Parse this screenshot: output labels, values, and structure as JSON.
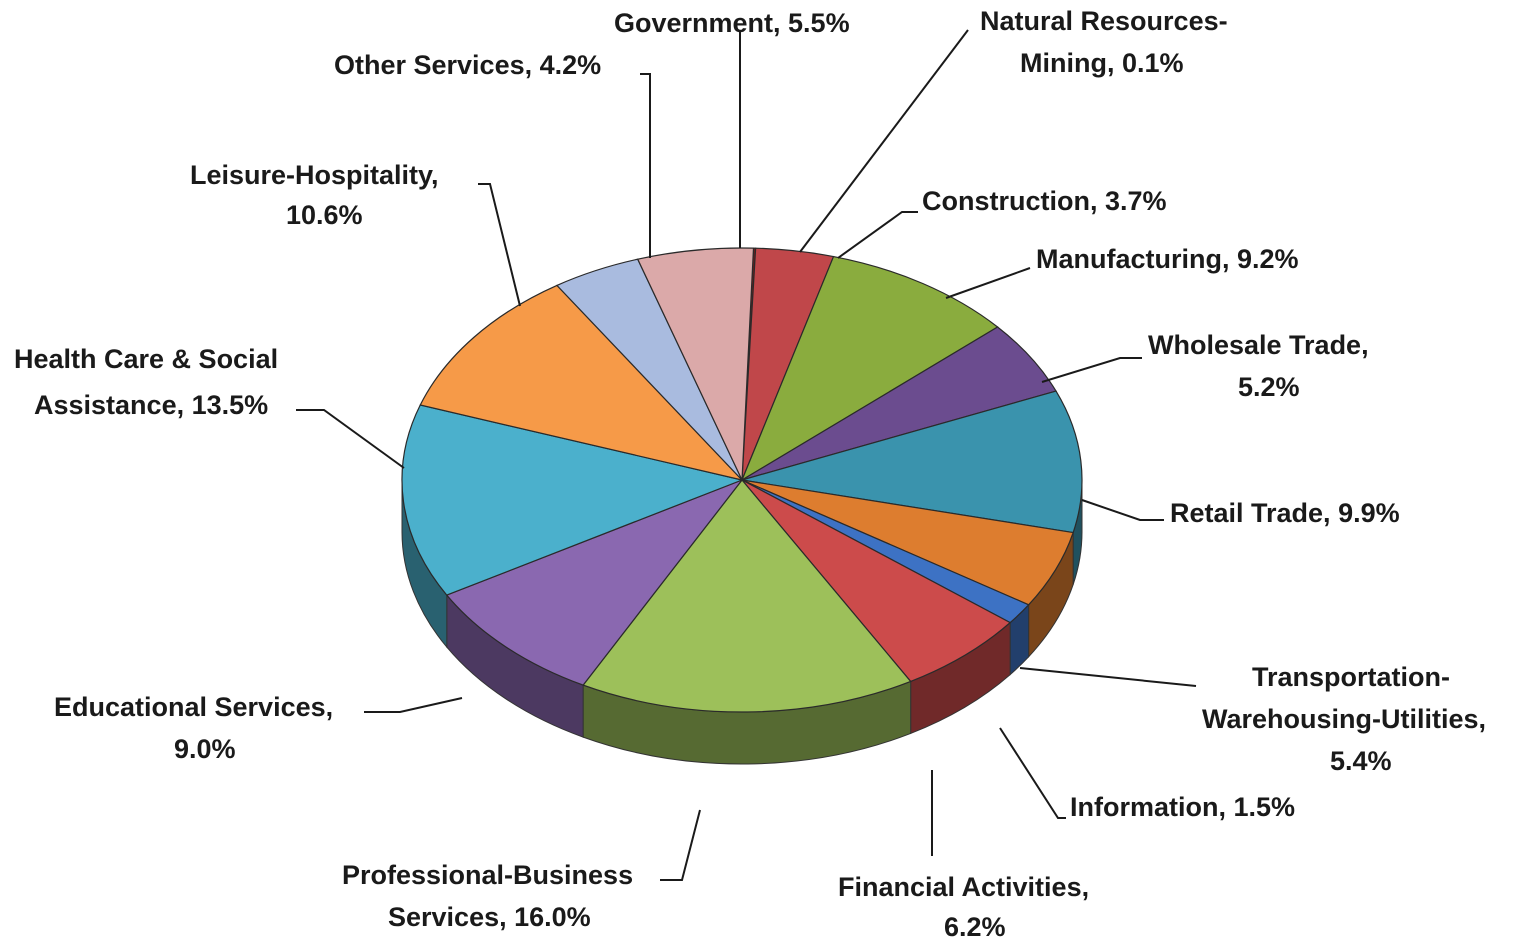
{
  "chart_data": {
    "type": "pie",
    "title": "",
    "style": "3d-exploded-none",
    "slices": [
      {
        "label": "Natural Resources-Mining",
        "value": 0.1,
        "color": "#7b1a1a",
        "text_lines": [
          "Natural Resources-",
          "Mining, 0.1%"
        ]
      },
      {
        "label": "Construction",
        "value": 3.7,
        "color": "#c0474a",
        "text_lines": [
          "Construction, 3.7%"
        ]
      },
      {
        "label": "Manufacturing",
        "value": 9.2,
        "color": "#8aac3e",
        "text_lines": [
          "Manufacturing, 9.2%"
        ]
      },
      {
        "label": "Wholesale Trade",
        "value": 5.2,
        "color": "#6b4c8f",
        "text_lines": [
          "Wholesale Trade,",
          "5.2%"
        ]
      },
      {
        "label": "Retail Trade",
        "value": 9.9,
        "color": "#3a93ad",
        "text_lines": [
          "Retail Trade, 9.9%"
        ]
      },
      {
        "label": "Transportation-Warehousing-Utilities",
        "value": 5.4,
        "color": "#dd7d2f",
        "text_lines": [
          "Transportation-",
          "Warehousing-Utilities,",
          "5.4%"
        ]
      },
      {
        "label": "Information",
        "value": 1.5,
        "color": "#3d72c4",
        "text_lines": [
          "Information, 1.5%"
        ]
      },
      {
        "label": "Financial Activities",
        "value": 6.2,
        "color": "#cc4b4b",
        "text_lines": [
          "Financial Activities,",
          "6.2%"
        ]
      },
      {
        "label": "Professional-Business Services",
        "value": 16.0,
        "color": "#9dc05a",
        "text_lines": [
          "Professional-Business",
          "Services, 16.0%"
        ]
      },
      {
        "label": "Educational Services",
        "value": 9.0,
        "color": "#8a68b0",
        "text_lines": [
          "Educational Services,",
          "9.0%"
        ]
      },
      {
        "label": "Health Care & Social Assistance",
        "value": 13.5,
        "color": "#4bb0cc",
        "text_lines": [
          "Health Care & Social",
          "Assistance, 13.5%"
        ]
      },
      {
        "label": "Leisure-Hospitality",
        "value": 10.6,
        "color": "#f69a48",
        "text_lines": [
          "Leisure-Hospitality,",
          "10.6%"
        ]
      },
      {
        "label": "Other Services",
        "value": 4.2,
        "color": "#a9bbdf",
        "text_lines": [
          "Other Services, 4.2%"
        ]
      },
      {
        "label": "Government",
        "value": 5.5,
        "color": "#dba9a9",
        "text_lines": [
          "Government, 5.5%"
        ]
      }
    ],
    "legend": "none",
    "data_labels": "category-name-and-percent-with-leader-lines"
  }
}
